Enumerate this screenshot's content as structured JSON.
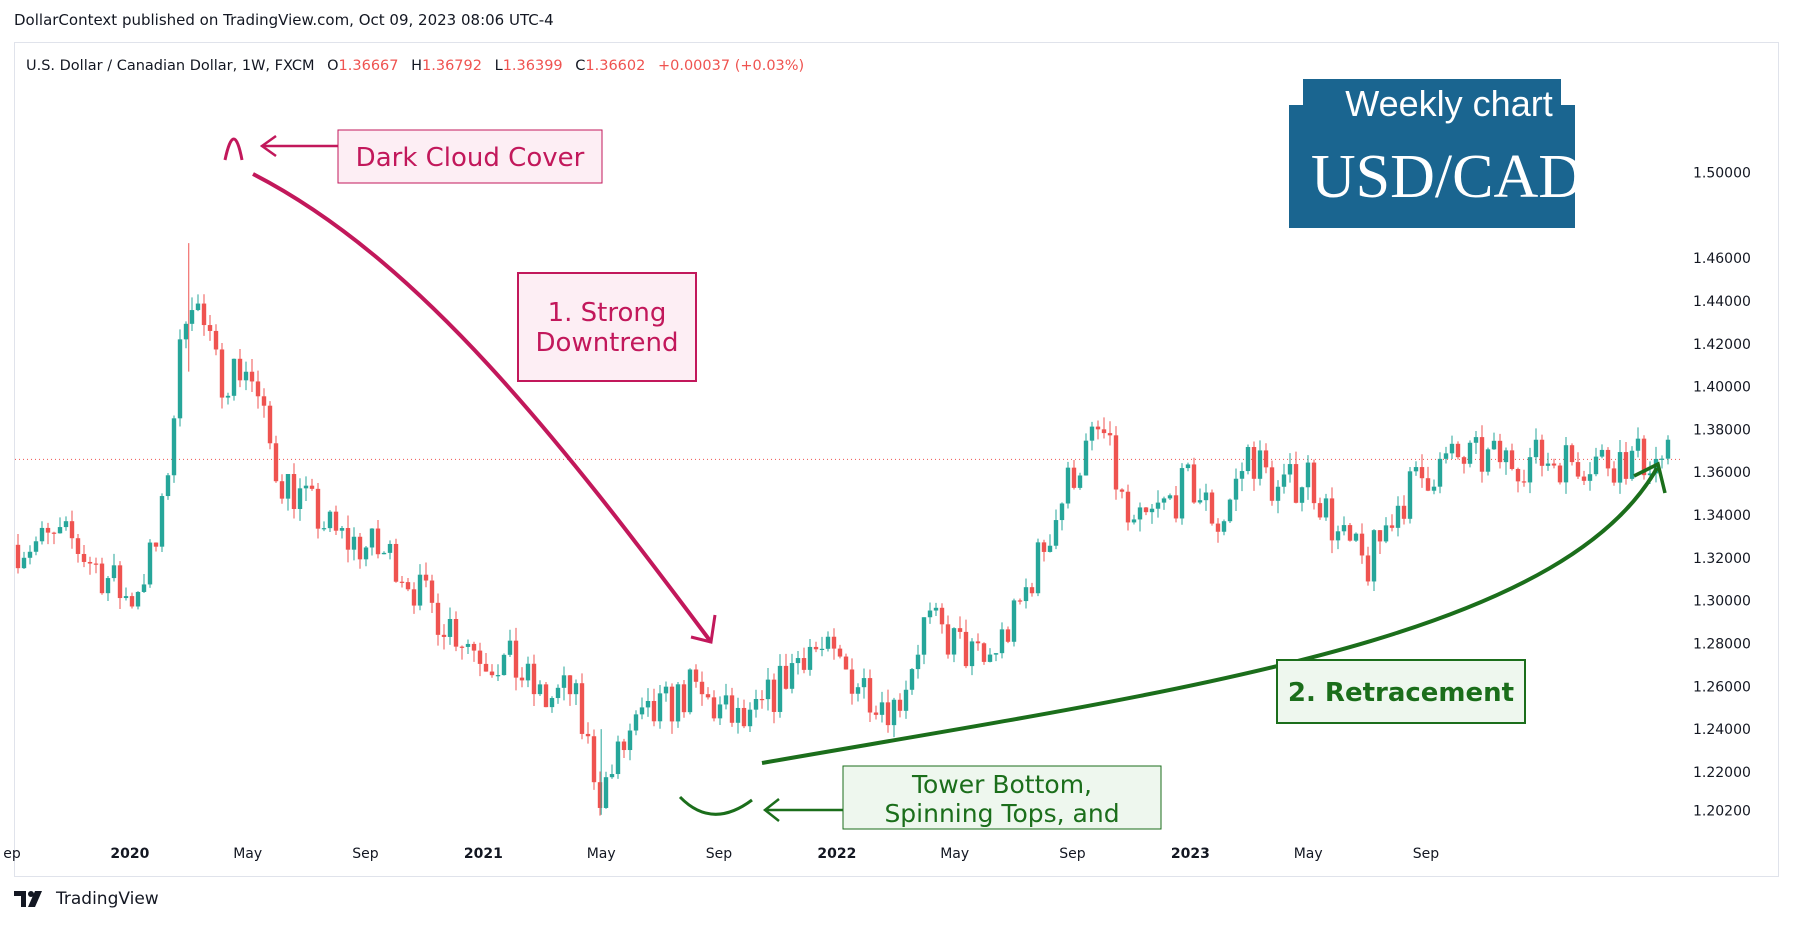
{
  "header": {
    "published_line": "DollarContext published on TradingView.com, Oct 09, 2023 08:06 UTC-4"
  },
  "footer": {
    "brand": "TradingView"
  },
  "legend": {
    "symbol": "U.S. Dollar / Canadian Dollar, 1W, FXCM",
    "o_label": "O",
    "o_value": "1.36667",
    "h_label": "H",
    "h_value": "1.36792",
    "l_label": "L",
    "l_value": "1.36399",
    "c_label": "C",
    "c_value": "1.36602",
    "change": "+0.00037 (+0.03%)"
  },
  "badge": {
    "line1": "Weekly chart",
    "line2": "USD/CAD"
  },
  "annotations": {
    "dark_cloud": "Dark Cloud Cover",
    "downtrend_line1": "1. Strong",
    "downtrend_line2": "Downtrend",
    "retracement": "2. Retracement",
    "tower_line1": "Tower Bottom,",
    "tower_line2": "Spinning Tops, and"
  },
  "colors": {
    "up": "#26a69a",
    "down": "#ef5350",
    "accent_red": "#c2185b",
    "accent_green": "#1b6e1b",
    "badge_bg": "#1a6590",
    "legend_value": "#ef5350"
  },
  "chart_data": {
    "type": "candlestick",
    "title": "U.S. Dollar / Canadian Dollar, 1W, FXCM",
    "timeframe": "1W",
    "ylim": [
      1.19,
      1.5
    ],
    "y_ticks": [
      "1.50000",
      "1.46000",
      "1.44000",
      "1.42000",
      "1.40000",
      "1.38000",
      "1.36000",
      "1.34000",
      "1.32000",
      "1.30000",
      "1.28000",
      "1.26000",
      "1.24000",
      "1.22000",
      "1.20200"
    ],
    "y_tick_values": [
      1.5,
      1.46,
      1.44,
      1.42,
      1.4,
      1.38,
      1.36,
      1.34,
      1.32,
      1.3,
      1.28,
      1.26,
      1.24,
      1.22,
      1.202
    ],
    "x_ticks": [
      {
        "label": "ep",
        "date": "2019-09",
        "bold": false
      },
      {
        "label": "2020",
        "date": "2020-01",
        "bold": true
      },
      {
        "label": "May",
        "date": "2020-05",
        "bold": false
      },
      {
        "label": "Sep",
        "date": "2020-09",
        "bold": false
      },
      {
        "label": "2021",
        "date": "2021-01",
        "bold": true
      },
      {
        "label": "May",
        "date": "2021-05",
        "bold": false
      },
      {
        "label": "Sep",
        "date": "2021-09",
        "bold": false
      },
      {
        "label": "2022",
        "date": "2022-01",
        "bold": true
      },
      {
        "label": "May",
        "date": "2022-05",
        "bold": false
      },
      {
        "label": "Sep",
        "date": "2022-09",
        "bold": false
      },
      {
        "label": "2023",
        "date": "2023-01",
        "bold": true
      },
      {
        "label": "May",
        "date": "2023-05",
        "bold": false
      },
      {
        "label": "Sep",
        "date": "2023-09",
        "bold": false
      }
    ],
    "current_price": 1.36602,
    "anchor_closes": [
      {
        "date": "2019-09",
        "close": 1.326
      },
      {
        "date": "2019-11",
        "close": 1.328
      },
      {
        "date": "2020-01",
        "close": 1.3
      },
      {
        "date": "2020-02",
        "close": 1.328
      },
      {
        "date": "2020-03",
        "close": 1.45
      },
      {
        "date": "2020-04",
        "close": 1.405
      },
      {
        "date": "2020-05",
        "close": 1.41
      },
      {
        "date": "2020-06",
        "close": 1.36
      },
      {
        "date": "2020-08",
        "close": 1.33
      },
      {
        "date": "2020-10",
        "close": 1.32
      },
      {
        "date": "2020-11",
        "close": 1.3
      },
      {
        "date": "2021-01",
        "close": 1.275
      },
      {
        "date": "2021-02",
        "close": 1.27
      },
      {
        "date": "2021-03",
        "close": 1.253
      },
      {
        "date": "2021-04",
        "close": 1.258
      },
      {
        "date": "2021-05",
        "close": 1.21
      },
      {
        "date": "2021-06",
        "close": 1.238
      },
      {
        "date": "2021-08",
        "close": 1.258
      },
      {
        "date": "2021-10",
        "close": 1.24
      },
      {
        "date": "2021-12",
        "close": 1.28
      },
      {
        "date": "2022-01",
        "close": 1.27
      },
      {
        "date": "2022-03",
        "close": 1.25
      },
      {
        "date": "2022-04",
        "close": 1.29
      },
      {
        "date": "2022-06",
        "close": 1.27
      },
      {
        "date": "2022-07",
        "close": 1.29
      },
      {
        "date": "2022-09",
        "close": 1.36
      },
      {
        "date": "2022-10",
        "close": 1.38
      },
      {
        "date": "2022-11",
        "close": 1.33
      },
      {
        "date": "2023-01",
        "close": 1.355
      },
      {
        "date": "2023-02",
        "close": 1.335
      },
      {
        "date": "2023-03",
        "close": 1.37
      },
      {
        "date": "2023-04",
        "close": 1.35
      },
      {
        "date": "2023-05",
        "close": 1.36
      },
      {
        "date": "2023-06",
        "close": 1.33
      },
      {
        "date": "2023-07",
        "close": 1.315
      },
      {
        "date": "2023-08",
        "close": 1.345
      },
      {
        "date": "2023-09",
        "close": 1.36
      },
      {
        "date": "2023-10",
        "close": 1.366
      }
    ],
    "annotated_extremes": [
      {
        "label": "Dark Cloud Cover",
        "date": "2020-03",
        "price": 1.467
      },
      {
        "label": "Tower Bottom, Spinning Tops, and",
        "date": "2021-05",
        "price": 1.2
      }
    ]
  }
}
